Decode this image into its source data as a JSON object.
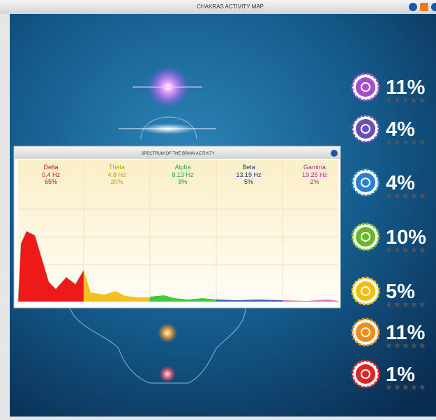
{
  "window": {
    "title": "CHAKRAS ACTIVITY MAP"
  },
  "chakras": [
    {
      "percent": "11%"
    },
    {
      "percent": "4%"
    },
    {
      "percent": "4%"
    },
    {
      "percent": "10%"
    },
    {
      "percent": "5%"
    },
    {
      "percent": "11%"
    },
    {
      "percent": "1%"
    }
  ],
  "spectrum": {
    "title": "SPECTRUM OF THE BRAIN ACTIVITY",
    "bands": [
      {
        "name": "Delta",
        "frequency": "0.4 Hz",
        "percent": "65%"
      },
      {
        "name": "Theta",
        "frequency": "4.8 Hz",
        "percent": "20%"
      },
      {
        "name": "Alpha",
        "frequency": "8.13 Hz",
        "percent": "8%"
      },
      {
        "name": "Beta",
        "frequency": "13.19 Hz",
        "percent": "5%"
      },
      {
        "name": "Gamma",
        "frequency": "19.25 Hz",
        "percent": "2%"
      }
    ]
  }
}
